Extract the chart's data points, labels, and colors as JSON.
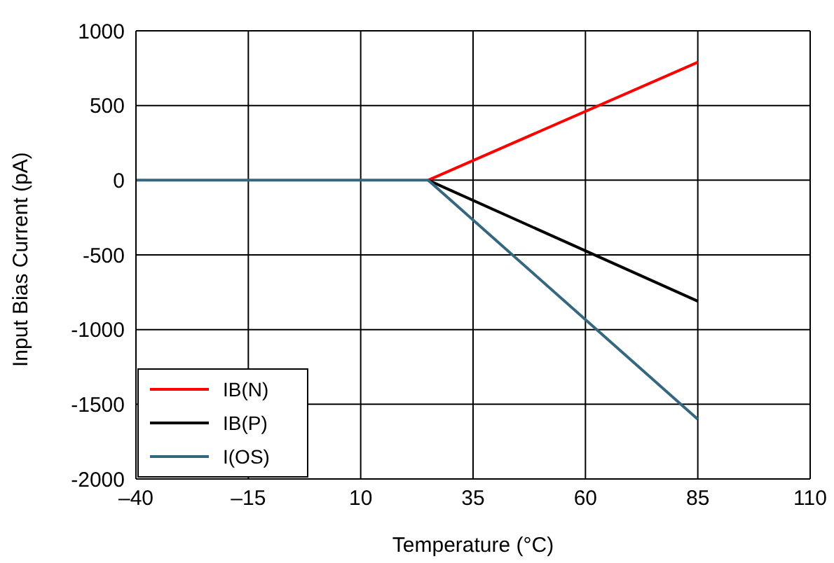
{
  "chart_data": {
    "type": "line",
    "xlabel": "Temperature (°C)",
    "ylabel": "Input Bias Current (pA)",
    "x": [
      -40,
      -15,
      10,
      25,
      85
    ],
    "series": [
      {
        "name": "IB(N)",
        "color": "#ff0000",
        "values": [
          null,
          null,
          null,
          0,
          790
        ]
      },
      {
        "name": "IB(P)",
        "color": "#000000",
        "values": [
          null,
          null,
          null,
          0,
          -810
        ]
      },
      {
        "name": "I(OS)",
        "color": "#35677f",
        "values": [
          0,
          0,
          0,
          0,
          -1600
        ]
      }
    ],
    "xlim": [
      -40,
      110
    ],
    "xticks": [
      {
        "value": -40,
        "label": "–40"
      },
      {
        "value": -15,
        "label": "–15"
      },
      10,
      35,
      60,
      85,
      110
    ],
    "ylim": [
      -2000,
      1000
    ],
    "yticks": [
      -2000,
      -1500,
      -1000,
      -500,
      0,
      500,
      1000
    ],
    "grid": true,
    "legend": "bottom left",
    "marker": "none",
    "line_style": "solid"
  }
}
